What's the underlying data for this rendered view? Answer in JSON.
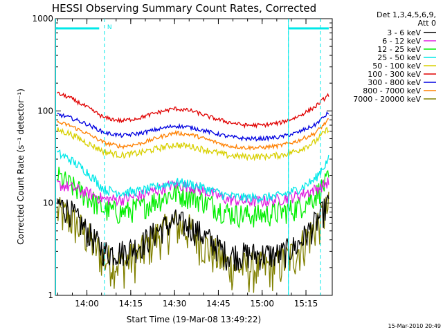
{
  "chart_data": {
    "type": "line",
    "title": "HESSI Observing Summary Count Rates, Corrected",
    "xlabel": "Start Time (19-Mar-08 13:49:22)",
    "ylabel": "Corrected Count Rate (s⁻¹ detector⁻¹)",
    "yscale": "log",
    "ylim": [
      1,
      1000
    ],
    "y_ticks": [
      {
        "value": 1,
        "label": "1"
      },
      {
        "value": 10,
        "label": "10"
      },
      {
        "value": 100,
        "label": "100"
      },
      {
        "value": 1000,
        "label": "1000"
      }
    ],
    "x_range_minutes": [
      13.82,
      15.4
    ],
    "x_ticks": [
      {
        "value": 14.0,
        "label": "14:00"
      },
      {
        "value": 14.25,
        "label": "14:15"
      },
      {
        "value": 14.5,
        "label": "14:30"
      },
      {
        "value": 14.75,
        "label": "14:45"
      },
      {
        "value": 15.0,
        "label": "15:00"
      },
      {
        "value": 15.25,
        "label": "15:15"
      }
    ],
    "x": [
      13.83,
      13.9,
      14.0,
      14.1,
      14.2,
      14.3,
      14.4,
      14.5,
      14.6,
      14.7,
      14.8,
      14.9,
      15.0,
      15.1,
      15.2,
      15.3,
      15.38
    ],
    "legend_header": [
      "Det 1,3,4,5,6,9,",
      "Att 0"
    ],
    "series": [
      {
        "name": "3 - 6 keV",
        "color": "#000000",
        "noise": 0.35,
        "values": [
          10,
          8.5,
          5,
          3,
          3,
          3.5,
          5,
          6.5,
          5.5,
          4,
          2.8,
          2.8,
          2.8,
          2.8,
          3.5,
          6,
          10
        ]
      },
      {
        "name": "6 - 12 keV",
        "color": "#e020e0",
        "noise": 0.15,
        "values": [
          16,
          15,
          13,
          11,
          11,
          12,
          14,
          16,
          15,
          13,
          11,
          10.5,
          10.5,
          11,
          12,
          14,
          17
        ]
      },
      {
        "name": "12 - 25 keV",
        "color": "#00ee00",
        "noise": 0.3,
        "values": [
          20,
          16,
          12,
          8.5,
          8,
          9,
          11,
          13,
          12,
          10,
          8,
          7.5,
          7.5,
          8,
          9,
          12,
          18
        ]
      },
      {
        "name": "25 - 50 keV",
        "color": "#00e8e8",
        "noise": 0.12,
        "values": [
          35,
          30,
          22,
          14,
          13,
          13.5,
          15,
          17,
          16,
          14,
          12,
          11.5,
          11.5,
          12,
          14,
          18,
          30
        ]
      },
      {
        "name": "50 - 100 keV",
        "color": "#d8d000",
        "noise": 0.08,
        "values": [
          62,
          57,
          45,
          36,
          33,
          35,
          39,
          43,
          41,
          37,
          33,
          32,
          32,
          33,
          37,
          46,
          65
        ]
      },
      {
        "name": "100 - 300 keV",
        "color": "#e00000",
        "noise": 0.05,
        "values": [
          155,
          140,
          110,
          84,
          78,
          84,
          96,
          106,
          100,
          86,
          76,
          70,
          70,
          74,
          86,
          110,
          150
        ]
      },
      {
        "name": "300 - 800 keV",
        "color": "#0000e0",
        "noise": 0.05,
        "values": [
          92,
          85,
          72,
          58,
          54,
          57,
          63,
          69,
          66,
          59,
          53,
          50,
          50,
          52,
          58,
          70,
          96
        ]
      },
      {
        "name": "800 - 7000 keV",
        "color": "#ff8000",
        "noise": 0.05,
        "values": [
          75,
          70,
          57,
          45,
          41,
          44,
          51,
          58,
          55,
          48,
          42,
          40,
          40,
          42,
          47,
          57,
          80
        ]
      },
      {
        "name": "7000 - 20000 keV",
        "color": "#808000",
        "noise": 0.5,
        "values": [
          8,
          7,
          4.5,
          2.5,
          2.2,
          2.8,
          4.5,
          6,
          5,
          3.2,
          2.2,
          2,
          2,
          2.2,
          3,
          5.5,
          9
        ]
      }
    ],
    "night_markers": [
      14.1,
      15.15
    ],
    "night_label": "N",
    "saa_bars": [
      [
        13.82,
        14.07
      ],
      [
        15.15,
        15.38
      ]
    ],
    "timestamp": "15-Mar-2010 20:49"
  }
}
